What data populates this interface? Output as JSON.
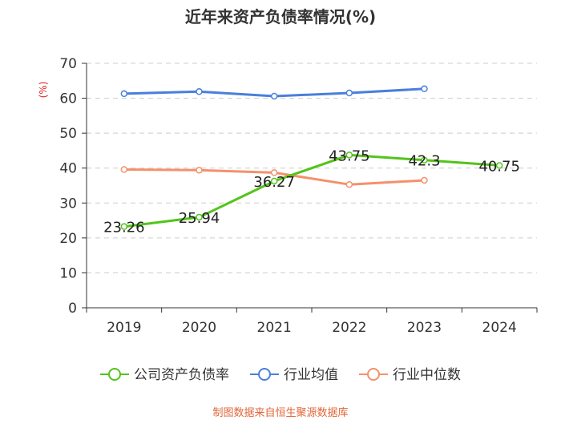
{
  "chart_data": {
    "type": "line",
    "title": "近年来资产负债率情况(%)",
    "ylabel": "(%)",
    "xlabel": "",
    "categories": [
      "2019",
      "2020",
      "2021",
      "2022",
      "2023",
      "2024"
    ],
    "ylim": [
      0,
      70
    ],
    "yticks": [
      0,
      10,
      20,
      30,
      40,
      50,
      60,
      70
    ],
    "grid": true,
    "legend_position": "bottom",
    "series": [
      {
        "name": "公司资产负债率",
        "color": "#52c41a",
        "values": [
          23.26,
          25.94,
          36.27,
          43.75,
          42.3,
          40.75
        ],
        "data_labels": [
          "23.26",
          "25.94",
          "36.27",
          "43.75",
          "42.3",
          "40.75"
        ]
      },
      {
        "name": "行业均值",
        "color": "#4a7fdc",
        "values": [
          61.3,
          61.9,
          60.6,
          61.5,
          62.7,
          null
        ]
      },
      {
        "name": "行业中位数",
        "color": "#f4916b",
        "values": [
          39.6,
          39.4,
          38.7,
          35.3,
          36.5,
          null
        ]
      }
    ]
  },
  "footer": {
    "source": "制图数据来自恒生聚源数据库"
  },
  "colors": {
    "axis": "#333333",
    "grid": "#cccccc",
    "ylabel": "#e02020",
    "source": "#e0663a"
  }
}
